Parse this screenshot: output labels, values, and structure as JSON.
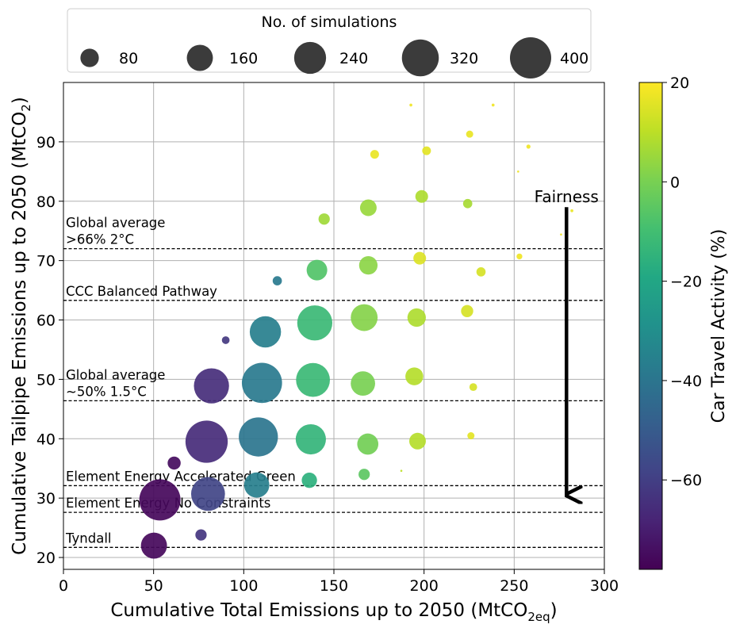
{
  "chart_data": {
    "type": "scatter",
    "xlabel": "Cumulative Total Emissions up to 2050 (MtCO",
    "xlabel_sub": "2eq",
    "xlabel_end": ")",
    "ylabel": "Cumulative Tailpipe Emissions up to 2050 (MtCO",
    "ylabel_sub": "2",
    "ylabel_end": ")",
    "xlim": [
      0,
      300
    ],
    "ylim": [
      18,
      100
    ],
    "xticks": [
      0,
      50,
      100,
      150,
      200,
      250,
      300
    ],
    "yticks": [
      20,
      30,
      40,
      50,
      60,
      70,
      80,
      90
    ],
    "grid": true,
    "size_legend": {
      "title": "No. of simulations",
      "placement": "top",
      "entries": [
        {
          "label": "80",
          "size": 80
        },
        {
          "label": "160",
          "size": 160
        },
        {
          "label": "240",
          "size": 240
        },
        {
          "label": "320",
          "size": 320
        },
        {
          "label": "400",
          "size": 400
        }
      ]
    },
    "colorbar": {
      "label": "Car Travel Activity (%)",
      "range": [
        -78,
        20
      ],
      "ticks": [
        20,
        0,
        -20,
        -40,
        -60
      ],
      "tick_labels": [
        "20",
        "0",
        "−20",
        "−40",
        "−60"
      ],
      "colormap": "viridis"
    },
    "hlines": [
      {
        "y": 72,
        "label_lines": [
          "Global average",
          ">66% 2°C"
        ]
      },
      {
        "y": 63.3,
        "label_lines": [
          "CCC Balanced Pathway"
        ]
      },
      {
        "y": 46.4,
        "label_lines": [
          "Global average",
          "~50% 1.5°C"
        ]
      },
      {
        "y": 32.1,
        "label_lines": [
          "Element Energy Accelerated Green"
        ]
      },
      {
        "y": 27.6,
        "label_lines": [
          "Element Energy No Constraints"
        ]
      },
      {
        "y": 21.7,
        "label_lines": [
          "Tyndall"
        ]
      }
    ],
    "annotation": {
      "text": "Fairness",
      "arrow_x": 279,
      "arrow_y_start": 79,
      "arrow_y_end": 30
    },
    "points": [
      {
        "x": 192.7,
        "y": 96.2,
        "size": 2,
        "c": 18
      },
      {
        "x": 238.3,
        "y": 96.2,
        "size": 2,
        "c": 18
      },
      {
        "x": 225.3,
        "y": 91.3,
        "size": 12,
        "c": 17
      },
      {
        "x": 257.9,
        "y": 89.2,
        "size": 4,
        "c": 18
      },
      {
        "x": 172.6,
        "y": 87.9,
        "size": 18,
        "c": 17
      },
      {
        "x": 201.4,
        "y": 88.5,
        "size": 18,
        "c": 16
      },
      {
        "x": 252.2,
        "y": 85.0,
        "size": 1,
        "c": 18
      },
      {
        "x": 198.7,
        "y": 80.8,
        "size": 38,
        "c": 8
      },
      {
        "x": 224.2,
        "y": 79.6,
        "size": 20,
        "c": 7
      },
      {
        "x": 169.1,
        "y": 78.9,
        "size": 65,
        "c": 5
      },
      {
        "x": 144.6,
        "y": 77.0,
        "size": 30,
        "c": 6
      },
      {
        "x": 282.0,
        "y": 78.4,
        "size": 2,
        "c": 17
      },
      {
        "x": 276.0,
        "y": 74.4,
        "size": 1,
        "c": 18
      },
      {
        "x": 252.9,
        "y": 70.7,
        "size": 8,
        "c": 18
      },
      {
        "x": 197.6,
        "y": 70.4,
        "size": 38,
        "c": 15
      },
      {
        "x": 169.1,
        "y": 69.2,
        "size": 80,
        "c": 3
      },
      {
        "x": 231.6,
        "y": 68.1,
        "size": 20,
        "c": 14
      },
      {
        "x": 118.6,
        "y": 66.6,
        "size": 20,
        "c": -38
      },
      {
        "x": 140.6,
        "y": 68.4,
        "size": 100,
        "c": -7
      },
      {
        "x": 195.9,
        "y": 60.4,
        "size": 80,
        "c": 8
      },
      {
        "x": 223.9,
        "y": 61.5,
        "size": 35,
        "c": 14
      },
      {
        "x": 166.8,
        "y": 60.4,
        "size": 170,
        "c": 2
      },
      {
        "x": 139.4,
        "y": 59.5,
        "size": 290,
        "c": -12
      },
      {
        "x": 112.0,
        "y": 58.0,
        "size": 230,
        "c": -36
      },
      {
        "x": 90.0,
        "y": 56.6,
        "size": 14,
        "c": -62
      },
      {
        "x": 110.1,
        "y": 49.4,
        "size": 380,
        "c": -38
      },
      {
        "x": 138.4,
        "y": 49.9,
        "size": 270,
        "c": -12
      },
      {
        "x": 166.1,
        "y": 49.3,
        "size": 140,
        "c": 0
      },
      {
        "x": 194.6,
        "y": 50.5,
        "size": 75,
        "c": 9
      },
      {
        "x": 227.3,
        "y": 48.7,
        "size": 14,
        "c": 14
      },
      {
        "x": 82.1,
        "y": 48.9,
        "size": 290,
        "c": -65
      },
      {
        "x": 79.4,
        "y": 39.5,
        "size": 420,
        "c": -66
      },
      {
        "x": 108.1,
        "y": 40.3,
        "size": 360,
        "c": -40
      },
      {
        "x": 137.2,
        "y": 39.9,
        "size": 215,
        "c": -14
      },
      {
        "x": 168.8,
        "y": 39.1,
        "size": 105,
        "c": -1
      },
      {
        "x": 196.4,
        "y": 39.6,
        "size": 65,
        "c": 9
      },
      {
        "x": 226.0,
        "y": 40.5,
        "size": 12,
        "c": 16
      },
      {
        "x": 61.4,
        "y": 35.9,
        "size": 40,
        "c": -75
      },
      {
        "x": 53.5,
        "y": 29.7,
        "size": 400,
        "c": -76
      },
      {
        "x": 80.2,
        "y": 30.7,
        "size": 270,
        "c": -58
      },
      {
        "x": 107.2,
        "y": 32.2,
        "size": 150,
        "c": -36
      },
      {
        "x": 136.4,
        "y": 33.0,
        "size": 55,
        "c": -16
      },
      {
        "x": 166.8,
        "y": 34.0,
        "size": 30,
        "c": -5
      },
      {
        "x": 187.4,
        "y": 34.6,
        "size": 1,
        "c": 10
      },
      {
        "x": 50.2,
        "y": 22.0,
        "size": 160,
        "c": -76
      },
      {
        "x": 76.3,
        "y": 23.8,
        "size": 30,
        "c": -63
      }
    ]
  }
}
